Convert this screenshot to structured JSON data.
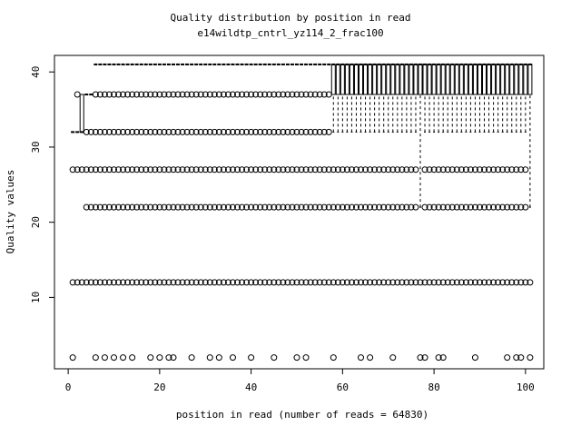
{
  "chart_data": {
    "type": "box",
    "title": "Quality distribution by position in read",
    "subtitle": "e14wildtp_cntrl_yz114_2_frac100",
    "xlabel": "position in read (number of reads = 64830)",
    "ylabel": "Quality values",
    "xlim": [
      -3,
      104
    ],
    "ylim": [
      0.5,
      42.2
    ],
    "xticks": [
      0,
      20,
      40,
      60,
      80,
      100
    ],
    "yticks": [
      10,
      20,
      30,
      40
    ],
    "color": "#000000",
    "x": [
      1,
      2,
      3,
      4,
      5,
      6,
      7,
      8,
      9,
      10,
      11,
      12,
      13,
      14,
      15,
      16,
      17,
      18,
      19,
      20,
      21,
      22,
      23,
      24,
      25,
      26,
      27,
      28,
      29,
      30,
      31,
      32,
      33,
      34,
      35,
      36,
      37,
      38,
      39,
      40,
      41,
      42,
      43,
      44,
      45,
      46,
      47,
      48,
      49,
      50,
      51,
      52,
      53,
      54,
      55,
      56,
      57,
      58,
      59,
      60,
      61,
      62,
      63,
      64,
      65,
      66,
      67,
      68,
      69,
      70,
      71,
      72,
      73,
      74,
      75,
      76,
      77,
      78,
      79,
      80,
      81,
      82,
      83,
      84,
      85,
      86,
      87,
      88,
      89,
      90,
      91,
      92,
      93,
      94,
      95,
      96,
      97,
      98,
      99,
      100,
      101
    ],
    "stats": [
      [
        32,
        32,
        32,
        32,
        32
      ],
      [
        32,
        32,
        32,
        32,
        32
      ],
      [
        32,
        32,
        32,
        37,
        37
      ],
      [
        37,
        37,
        37,
        37,
        37
      ],
      [
        37,
        37,
        37,
        37,
        37
      ],
      [
        41,
        41,
        41,
        41,
        41
      ],
      [
        41,
        41,
        41,
        41,
        41
      ],
      [
        41,
        41,
        41,
        41,
        41
      ],
      [
        41,
        41,
        41,
        41,
        41
      ],
      [
        41,
        41,
        41,
        41,
        41
      ],
      [
        41,
        41,
        41,
        41,
        41
      ],
      [
        41,
        41,
        41,
        41,
        41
      ],
      [
        41,
        41,
        41,
        41,
        41
      ],
      [
        41,
        41,
        41,
        41,
        41
      ],
      [
        41,
        41,
        41,
        41,
        41
      ],
      [
        41,
        41,
        41,
        41,
        41
      ],
      [
        41,
        41,
        41,
        41,
        41
      ],
      [
        41,
        41,
        41,
        41,
        41
      ],
      [
        41,
        41,
        41,
        41,
        41
      ],
      [
        41,
        41,
        41,
        41,
        41
      ],
      [
        41,
        41,
        41,
        41,
        41
      ],
      [
        41,
        41,
        41,
        41,
        41
      ],
      [
        41,
        41,
        41,
        41,
        41
      ],
      [
        41,
        41,
        41,
        41,
        41
      ],
      [
        41,
        41,
        41,
        41,
        41
      ],
      [
        41,
        41,
        41,
        41,
        41
      ],
      [
        41,
        41,
        41,
        41,
        41
      ],
      [
        41,
        41,
        41,
        41,
        41
      ],
      [
        41,
        41,
        41,
        41,
        41
      ],
      [
        41,
        41,
        41,
        41,
        41
      ],
      [
        41,
        41,
        41,
        41,
        41
      ],
      [
        41,
        41,
        41,
        41,
        41
      ],
      [
        41,
        41,
        41,
        41,
        41
      ],
      [
        41,
        41,
        41,
        41,
        41
      ],
      [
        41,
        41,
        41,
        41,
        41
      ],
      [
        41,
        41,
        41,
        41,
        41
      ],
      [
        41,
        41,
        41,
        41,
        41
      ],
      [
        41,
        41,
        41,
        41,
        41
      ],
      [
        41,
        41,
        41,
        41,
        41
      ],
      [
        41,
        41,
        41,
        41,
        41
      ],
      [
        41,
        41,
        41,
        41,
        41
      ],
      [
        41,
        41,
        41,
        41,
        41
      ],
      [
        41,
        41,
        41,
        41,
        41
      ],
      [
        41,
        41,
        41,
        41,
        41
      ],
      [
        41,
        41,
        41,
        41,
        41
      ],
      [
        41,
        41,
        41,
        41,
        41
      ],
      [
        41,
        41,
        41,
        41,
        41
      ],
      [
        41,
        41,
        41,
        41,
        41
      ],
      [
        41,
        41,
        41,
        41,
        41
      ],
      [
        41,
        41,
        41,
        41,
        41
      ],
      [
        41,
        41,
        41,
        41,
        41
      ],
      [
        41,
        41,
        41,
        41,
        41
      ],
      [
        41,
        41,
        41,
        41,
        41
      ],
      [
        41,
        41,
        41,
        41,
        41
      ],
      [
        41,
        41,
        41,
        41,
        41
      ],
      [
        41,
        41,
        41,
        41,
        41
      ],
      [
        41,
        41,
        41,
        41,
        41
      ],
      [
        32,
        37,
        41,
        41,
        41
      ],
      [
        32,
        37,
        41,
        41,
        41
      ],
      [
        32,
        37,
        41,
        41,
        41
      ],
      [
        32,
        37,
        41,
        41,
        41
      ],
      [
        32,
        37,
        41,
        41,
        41
      ],
      [
        32,
        37,
        41,
        41,
        41
      ],
      [
        32,
        37,
        41,
        41,
        41
      ],
      [
        32,
        37,
        41,
        41,
        41
      ],
      [
        32,
        37,
        41,
        41,
        41
      ],
      [
        32,
        37,
        41,
        41,
        41
      ],
      [
        32,
        37,
        41,
        41,
        41
      ],
      [
        32,
        37,
        41,
        41,
        41
      ],
      [
        32,
        37,
        41,
        41,
        41
      ],
      [
        32,
        37,
        41,
        41,
        41
      ],
      [
        32,
        37,
        41,
        41,
        41
      ],
      [
        32,
        37,
        41,
        41,
        41
      ],
      [
        32,
        37,
        41,
        41,
        41
      ],
      [
        32,
        37,
        41,
        41,
        41
      ],
      [
        32,
        37,
        41,
        41,
        41
      ],
      [
        22,
        37,
        41,
        41,
        41
      ],
      [
        32,
        37,
        41,
        41,
        41
      ],
      [
        32,
        37,
        41,
        41,
        41
      ],
      [
        32,
        37,
        41,
        41,
        41
      ],
      [
        32,
        37,
        41,
        41,
        41
      ],
      [
        32,
        37,
        41,
        41,
        41
      ],
      [
        32,
        37,
        41,
        41,
        41
      ],
      [
        32,
        37,
        41,
        41,
        41
      ],
      [
        32,
        37,
        41,
        41,
        41
      ],
      [
        32,
        37,
        41,
        41,
        41
      ],
      [
        32,
        37,
        41,
        41,
        41
      ],
      [
        32,
        37,
        41,
        41,
        41
      ],
      [
        32,
        37,
        41,
        41,
        41
      ],
      [
        32,
        37,
        41,
        41,
        41
      ],
      [
        32,
        37,
        41,
        41,
        41
      ],
      [
        32,
        37,
        41,
        41,
        41
      ],
      [
        32,
        37,
        41,
        41,
        41
      ],
      [
        32,
        37,
        41,
        41,
        41
      ],
      [
        32,
        37,
        41,
        41,
        41
      ],
      [
        32,
        37,
        41,
        41,
        41
      ],
      [
        32,
        37,
        41,
        41,
        41
      ],
      [
        32,
        37,
        41,
        41,
        41
      ],
      [
        32,
        37,
        41,
        41,
        41
      ],
      [
        32,
        37,
        41,
        41,
        41
      ],
      [
        22,
        37,
        41,
        41,
        41
      ]
    ],
    "outliers": [
      [
        27,
        12,
        2
      ],
      [
        37,
        27,
        12
      ],
      [
        27,
        12
      ],
      [
        32,
        27,
        22,
        12
      ],
      [
        32,
        27,
        22,
        12
      ],
      [
        37,
        32,
        27,
        22,
        12,
        2
      ],
      [
        37,
        32,
        27,
        22,
        12
      ],
      [
        37,
        32,
        27,
        22,
        12,
        2
      ],
      [
        37,
        32,
        27,
        22,
        12
      ],
      [
        37,
        32,
        27,
        22,
        12,
        2
      ],
      [
        37,
        32,
        27,
        22,
        12
      ],
      [
        37,
        32,
        27,
        22,
        12,
        2
      ],
      [
        37,
        32,
        27,
        22,
        12
      ],
      [
        37,
        32,
        27,
        22,
        12,
        2
      ],
      [
        37,
        32,
        27,
        22,
        12
      ],
      [
        37,
        32,
        27,
        22,
        12
      ],
      [
        37,
        32,
        27,
        22,
        12
      ],
      [
        37,
        32,
        27,
        22,
        12,
        2
      ],
      [
        37,
        32,
        27,
        22,
        12
      ],
      [
        37,
        32,
        27,
        22,
        12,
        2
      ],
      [
        37,
        32,
        27,
        22,
        12
      ],
      [
        37,
        32,
        27,
        22,
        12,
        2
      ],
      [
        37,
        32,
        27,
        22,
        12,
        2
      ],
      [
        37,
        32,
        27,
        22,
        12
      ],
      [
        37,
        32,
        27,
        22,
        12
      ],
      [
        37,
        32,
        27,
        22,
        12
      ],
      [
        37,
        32,
        27,
        22,
        12,
        2
      ],
      [
        37,
        32,
        27,
        22,
        12
      ],
      [
        37,
        32,
        27,
        22,
        12
      ],
      [
        37,
        32,
        27,
        22,
        12
      ],
      [
        37,
        32,
        27,
        22,
        12,
        2
      ],
      [
        37,
        32,
        27,
        22,
        12
      ],
      [
        37,
        32,
        27,
        22,
        12,
        2
      ],
      [
        37,
        32,
        27,
        22,
        12
      ],
      [
        37,
        32,
        27,
        22,
        12
      ],
      [
        37,
        32,
        27,
        22,
        12,
        2
      ],
      [
        37,
        32,
        27,
        22,
        12
      ],
      [
        37,
        32,
        27,
        22,
        12
      ],
      [
        37,
        32,
        27,
        22,
        12
      ],
      [
        37,
        32,
        27,
        22,
        12,
        2
      ],
      [
        37,
        32,
        27,
        22,
        12
      ],
      [
        37,
        32,
        27,
        22,
        12
      ],
      [
        37,
        32,
        27,
        22,
        12
      ],
      [
        37,
        32,
        27,
        22,
        12
      ],
      [
        37,
        32,
        27,
        22,
        12,
        2
      ],
      [
        37,
        32,
        27,
        22,
        12
      ],
      [
        37,
        32,
        27,
        22,
        12
      ],
      [
        37,
        32,
        27,
        22,
        12
      ],
      [
        37,
        32,
        27,
        22,
        12
      ],
      [
        37,
        32,
        27,
        22,
        12,
        2
      ],
      [
        37,
        32,
        27,
        22,
        12
      ],
      [
        37,
        32,
        27,
        22,
        12,
        2
      ],
      [
        37,
        32,
        27,
        22,
        12
      ],
      [
        37,
        32,
        27,
        22,
        12
      ],
      [
        37,
        32,
        27,
        22,
        12
      ],
      [
        37,
        32,
        27,
        22,
        12
      ],
      [
        37,
        32,
        27,
        22,
        12
      ],
      [
        27,
        22,
        12,
        2
      ],
      [
        27,
        22,
        12
      ],
      [
        27,
        22,
        12
      ],
      [
        27,
        22,
        12
      ],
      [
        27,
        22,
        12
      ],
      [
        27,
        22,
        12
      ],
      [
        27,
        22,
        12,
        2
      ],
      [
        27,
        22,
        12
      ],
      [
        27,
        22,
        12,
        2
      ],
      [
        27,
        22,
        12
      ],
      [
        27,
        22,
        12
      ],
      [
        27,
        22,
        12
      ],
      [
        27,
        22,
        12
      ],
      [
        27,
        22,
        12,
        2
      ],
      [
        27,
        22,
        12
      ],
      [
        27,
        22,
        12
      ],
      [
        27,
        22,
        12
      ],
      [
        27,
        22,
        12
      ],
      [
        27,
        22,
        12
      ],
      [
        12,
        2
      ],
      [
        27,
        22,
        12,
        2
      ],
      [
        27,
        22,
        12
      ],
      [
        27,
        22,
        12
      ],
      [
        27,
        22,
        12,
        2
      ],
      [
        27,
        22,
        12,
        2
      ],
      [
        27,
        22,
        12
      ],
      [
        27,
        22,
        12
      ],
      [
        27,
        22,
        12
      ],
      [
        27,
        22,
        12
      ],
      [
        27,
        22,
        12
      ],
      [
        27,
        22,
        12
      ],
      [
        27,
        22,
        12,
        2
      ],
      [
        27,
        22,
        12
      ],
      [
        27,
        22,
        12
      ],
      [
        27,
        22,
        12
      ],
      [
        27,
        22,
        12
      ],
      [
        27,
        22,
        12
      ],
      [
        27,
        22,
        12
      ],
      [
        27,
        22,
        12,
        2
      ],
      [
        27,
        22,
        12
      ],
      [
        27,
        22,
        12,
        2
      ],
      [
        27,
        22,
        12,
        2
      ],
      [
        27,
        22,
        12
      ],
      [
        12,
        2
      ]
    ]
  }
}
